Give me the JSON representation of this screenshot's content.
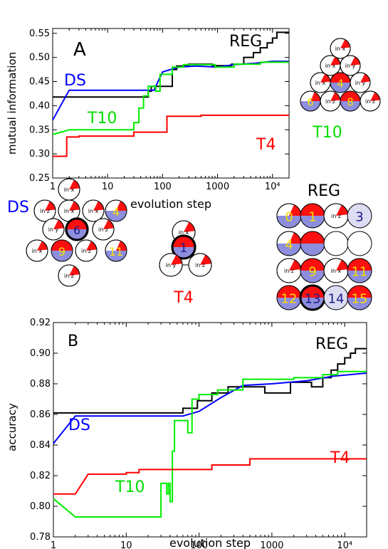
{
  "chart_data": [
    {
      "panel_label": "A",
      "type": "line",
      "xlabel": "evolution step",
      "ylabel": "mutual information",
      "xscale": "log",
      "xlim": [
        1,
        20000
      ],
      "ylim": [
        0.25,
        0.56
      ],
      "xticks": [
        {
          "v": 1,
          "label": "1"
        },
        {
          "v": 10,
          "label": "10"
        },
        {
          "v": 100,
          "label": "100"
        },
        {
          "v": 1000,
          "label": "1000"
        },
        {
          "v": 10000,
          "label": "10⁴"
        }
      ],
      "yticks": [
        {
          "v": 0.25,
          "label": "0.25"
        },
        {
          "v": 0.3,
          "label": "0.30"
        },
        {
          "v": 0.35,
          "label": "0.35"
        },
        {
          "v": 0.4,
          "label": "0.40"
        },
        {
          "v": 0.45,
          "label": "0.45"
        },
        {
          "v": 0.5,
          "label": "0.50"
        },
        {
          "v": 0.55,
          "label": "0.55"
        }
      ],
      "series": [
        {
          "name": "REG",
          "color": "#000000",
          "step": true,
          "points": [
            [
              1,
              0.418
            ],
            [
              55,
              0.418
            ],
            [
              55,
              0.43
            ],
            [
              62,
              0.43
            ],
            [
              62,
              0.44
            ],
            [
              150,
              0.44
            ],
            [
              150,
              0.475
            ],
            [
              180,
              0.475
            ],
            [
              180,
              0.482
            ],
            [
              300,
              0.482
            ],
            [
              300,
              0.486
            ],
            [
              800,
              0.486
            ],
            [
              800,
              0.483
            ],
            [
              1800,
              0.483
            ],
            [
              1800,
              0.486
            ],
            [
              3000,
              0.486
            ],
            [
              3000,
              0.5
            ],
            [
              4500,
              0.5
            ],
            [
              4500,
              0.51
            ],
            [
              6000,
              0.51
            ],
            [
              6000,
              0.52
            ],
            [
              8000,
              0.52
            ],
            [
              8000,
              0.53
            ],
            [
              10000,
              0.53
            ],
            [
              10000,
              0.54
            ],
            [
              12000,
              0.54
            ],
            [
              12000,
              0.552
            ],
            [
              20000,
              0.552
            ]
          ]
        },
        {
          "name": "DS",
          "color": "#0000ff",
          "step": false,
          "points": [
            [
              1,
              0.37
            ],
            [
              2,
              0.432
            ],
            [
              40,
              0.432
            ],
            [
              70,
              0.432
            ],
            [
              75,
              0.44
            ],
            [
              100,
              0.47
            ],
            [
              200,
              0.48
            ],
            [
              400,
              0.482
            ],
            [
              1000,
              0.48
            ],
            [
              2000,
              0.485
            ],
            [
              5000,
              0.488
            ],
            [
              10000,
              0.492
            ],
            [
              20000,
              0.492
            ]
          ]
        },
        {
          "name": "T10",
          "color": "#00ee00",
          "step": true,
          "points": [
            [
              1,
              0.34
            ],
            [
              2,
              0.35
            ],
            [
              30,
              0.35
            ],
            [
              30,
              0.365
            ],
            [
              37,
              0.365
            ],
            [
              37,
              0.395
            ],
            [
              45,
              0.395
            ],
            [
              45,
              0.42
            ],
            [
              55,
              0.42
            ],
            [
              55,
              0.44
            ],
            [
              75,
              0.44
            ],
            [
              75,
              0.43
            ],
            [
              90,
              0.43
            ],
            [
              90,
              0.465
            ],
            [
              150,
              0.465
            ],
            [
              150,
              0.48
            ],
            [
              240,
              0.48
            ],
            [
              240,
              0.485
            ],
            [
              900,
              0.485
            ],
            [
              900,
              0.48
            ],
            [
              2000,
              0.48
            ],
            [
              2000,
              0.486
            ],
            [
              6000,
              0.486
            ],
            [
              6000,
              0.49
            ],
            [
              20000,
              0.49
            ]
          ]
        },
        {
          "name": "T4",
          "color": "#ff0000",
          "step": true,
          "points": [
            [
              1,
              0.295
            ],
            [
              1.8,
              0.295
            ],
            [
              1.8,
              0.335
            ],
            [
              3,
              0.335
            ],
            [
              3,
              0.337
            ],
            [
              30,
              0.337
            ],
            [
              30,
              0.345
            ],
            [
              120,
              0.345
            ],
            [
              120,
              0.378
            ],
            [
              500,
              0.378
            ],
            [
              500,
              0.38
            ],
            [
              20000,
              0.38
            ]
          ]
        }
      ]
    },
    {
      "panel_label": "B",
      "type": "line",
      "xlabel": "evolution step",
      "ylabel": "accuracy",
      "xscale": "log",
      "xlim": [
        1,
        20000
      ],
      "ylim": [
        0.78,
        0.92
      ],
      "xticks": [
        {
          "v": 1,
          "label": "1"
        },
        {
          "v": 10,
          "label": "10"
        },
        {
          "v": 100,
          "label": "100"
        },
        {
          "v": 1000,
          "label": "1000"
        },
        {
          "v": 10000,
          "label": "10⁴"
        }
      ],
      "yticks": [
        {
          "v": 0.78,
          "label": "0.78"
        },
        {
          "v": 0.8,
          "label": "0.80"
        },
        {
          "v": 0.82,
          "label": "0.82"
        },
        {
          "v": 0.84,
          "label": "0.84"
        },
        {
          "v": 0.86,
          "label": "0.86"
        },
        {
          "v": 0.88,
          "label": "0.88"
        },
        {
          "v": 0.9,
          "label": "0.90"
        },
        {
          "v": 0.92,
          "label": "0.92"
        }
      ],
      "series": [
        {
          "name": "REG",
          "color": "#000000",
          "step": true,
          "points": [
            [
              1,
              0.861
            ],
            [
              60,
              0.861
            ],
            [
              60,
              0.864
            ],
            [
              95,
              0.864
            ],
            [
              95,
              0.869
            ],
            [
              150,
              0.869
            ],
            [
              150,
              0.874
            ],
            [
              250,
              0.874
            ],
            [
              250,
              0.878
            ],
            [
              800,
              0.878
            ],
            [
              800,
              0.874
            ],
            [
              1800,
              0.874
            ],
            [
              1800,
              0.881
            ],
            [
              3500,
              0.881
            ],
            [
              3500,
              0.878
            ],
            [
              5000,
              0.878
            ],
            [
              5000,
              0.884
            ],
            [
              6500,
              0.884
            ],
            [
              6500,
              0.889
            ],
            [
              8000,
              0.889
            ],
            [
              8000,
              0.893
            ],
            [
              10000,
              0.893
            ],
            [
              10000,
              0.897
            ],
            [
              12000,
              0.897
            ],
            [
              12000,
              0.9
            ],
            [
              14000,
              0.9
            ],
            [
              14000,
              0.903
            ],
            [
              20000,
              0.903
            ]
          ]
        },
        {
          "name": "DS",
          "color": "#0000ff",
          "step": false,
          "points": [
            [
              1,
              0.841
            ],
            [
              2,
              0.859
            ],
            [
              60,
              0.859
            ],
            [
              100,
              0.862
            ],
            [
              200,
              0.871
            ],
            [
              400,
              0.879
            ],
            [
              1000,
              0.88
            ],
            [
              3000,
              0.882
            ],
            [
              7000,
              0.885
            ],
            [
              20000,
              0.887
            ]
          ]
        },
        {
          "name": "T10",
          "color": "#00ee00",
          "step": true,
          "points": [
            [
              1,
              0.805
            ],
            [
              2,
              0.793
            ],
            [
              30,
              0.793
            ],
            [
              30,
              0.815
            ],
            [
              36,
              0.815
            ],
            [
              36,
              0.808
            ],
            [
              38,
              0.808
            ],
            [
              38,
              0.815
            ],
            [
              40,
              0.815
            ],
            [
              40,
              0.803
            ],
            [
              43,
              0.803
            ],
            [
              43,
              0.836
            ],
            [
              46,
              0.836
            ],
            [
              46,
              0.856
            ],
            [
              70,
              0.856
            ],
            [
              70,
              0.848
            ],
            [
              80,
              0.848
            ],
            [
              80,
              0.87
            ],
            [
              100,
              0.87
            ],
            [
              100,
              0.873
            ],
            [
              180,
              0.873
            ],
            [
              180,
              0.876
            ],
            [
              400,
              0.876
            ],
            [
              400,
              0.883
            ],
            [
              2000,
              0.883
            ],
            [
              2000,
              0.884
            ],
            [
              5000,
              0.884
            ],
            [
              5000,
              0.886
            ],
            [
              8000,
              0.886
            ],
            [
              8000,
              0.888
            ],
            [
              20000,
              0.888
            ]
          ]
        },
        {
          "name": "T4",
          "color": "#ff0000",
          "step": true,
          "points": [
            [
              1,
              0.808
            ],
            [
              2,
              0.808
            ],
            [
              3,
              0.821
            ],
            [
              10,
              0.821
            ],
            [
              10,
              0.822
            ],
            [
              15,
              0.822
            ],
            [
              15,
              0.824
            ],
            [
              150,
              0.824
            ],
            [
              150,
              0.827
            ],
            [
              500,
              0.827
            ],
            [
              500,
              0.831
            ],
            [
              20000,
              0.831
            ]
          ]
        }
      ]
    }
  ],
  "annotations": {
    "a_labels": [
      "REG",
      "DS",
      "T10",
      "T4"
    ],
    "b_labels": [
      "REG",
      "DS",
      "T10",
      "T4"
    ],
    "diagram_titles": {
      "t10": "T10",
      "ds": "DS",
      "t4": "T4",
      "reg": "REG"
    }
  },
  "diagrams": {
    "t10": {
      "nodes": [
        {
          "label": "in x",
          "style": "input"
        },
        {
          "label": "in x",
          "style": "input"
        },
        {
          "label": "in y",
          "style": "input"
        },
        {
          "label": "in x",
          "style": "input"
        },
        {
          "label": "4",
          "style": "red"
        },
        {
          "label": "in y",
          "style": "input"
        },
        {
          "label": "6",
          "style": "blue"
        },
        {
          "label": "in z",
          "style": "input"
        },
        {
          "label": "8",
          "style": "red"
        },
        {
          "label": "in z",
          "style": "input"
        }
      ]
    },
    "ds": {
      "nodes": [
        {
          "label": "in x",
          "style": "input"
        },
        {
          "label": "in z",
          "style": "input"
        },
        {
          "label": "in x",
          "style": "input"
        },
        {
          "label": "in x",
          "style": "input"
        },
        {
          "label": "4",
          "style": "blue"
        },
        {
          "label": "in y",
          "style": "input"
        },
        {
          "label": "6",
          "style": "center"
        },
        {
          "label": "in z",
          "style": "input"
        },
        {
          "label": "in x",
          "style": "input"
        },
        {
          "label": "9",
          "style": "red"
        },
        {
          "label": "in z",
          "style": "input"
        },
        {
          "label": "11",
          "style": "blue"
        },
        {
          "label": "in z",
          "style": "input"
        }
      ]
    },
    "t4": {
      "nodes": [
        {
          "label": "in x",
          "style": "input"
        },
        {
          "label": "1",
          "style": "center"
        },
        {
          "label": "in y",
          "style": "input"
        },
        {
          "label": "in z",
          "style": "input"
        }
      ]
    },
    "reg": {
      "nodes": [
        {
          "label": "0",
          "style": "blue"
        },
        {
          "label": "1",
          "style": "red"
        },
        {
          "label": "in z",
          "style": "input"
        },
        {
          "label": "3",
          "style": "pale"
        },
        {
          "label": "4",
          "style": "blue"
        },
        {
          "label": "",
          "style": "red"
        },
        {
          "label": "",
          "style": "white"
        },
        {
          "label": "",
          "style": "white"
        },
        {
          "label": "in z",
          "style": "input"
        },
        {
          "label": "9",
          "style": "red"
        },
        {
          "label": "in x",
          "style": "input"
        },
        {
          "label": "11",
          "style": "red"
        },
        {
          "label": "12",
          "style": "red"
        },
        {
          "label": "13",
          "style": "center"
        },
        {
          "label": "14",
          "style": "pale"
        },
        {
          "label": "15",
          "style": "red"
        }
      ]
    }
  }
}
